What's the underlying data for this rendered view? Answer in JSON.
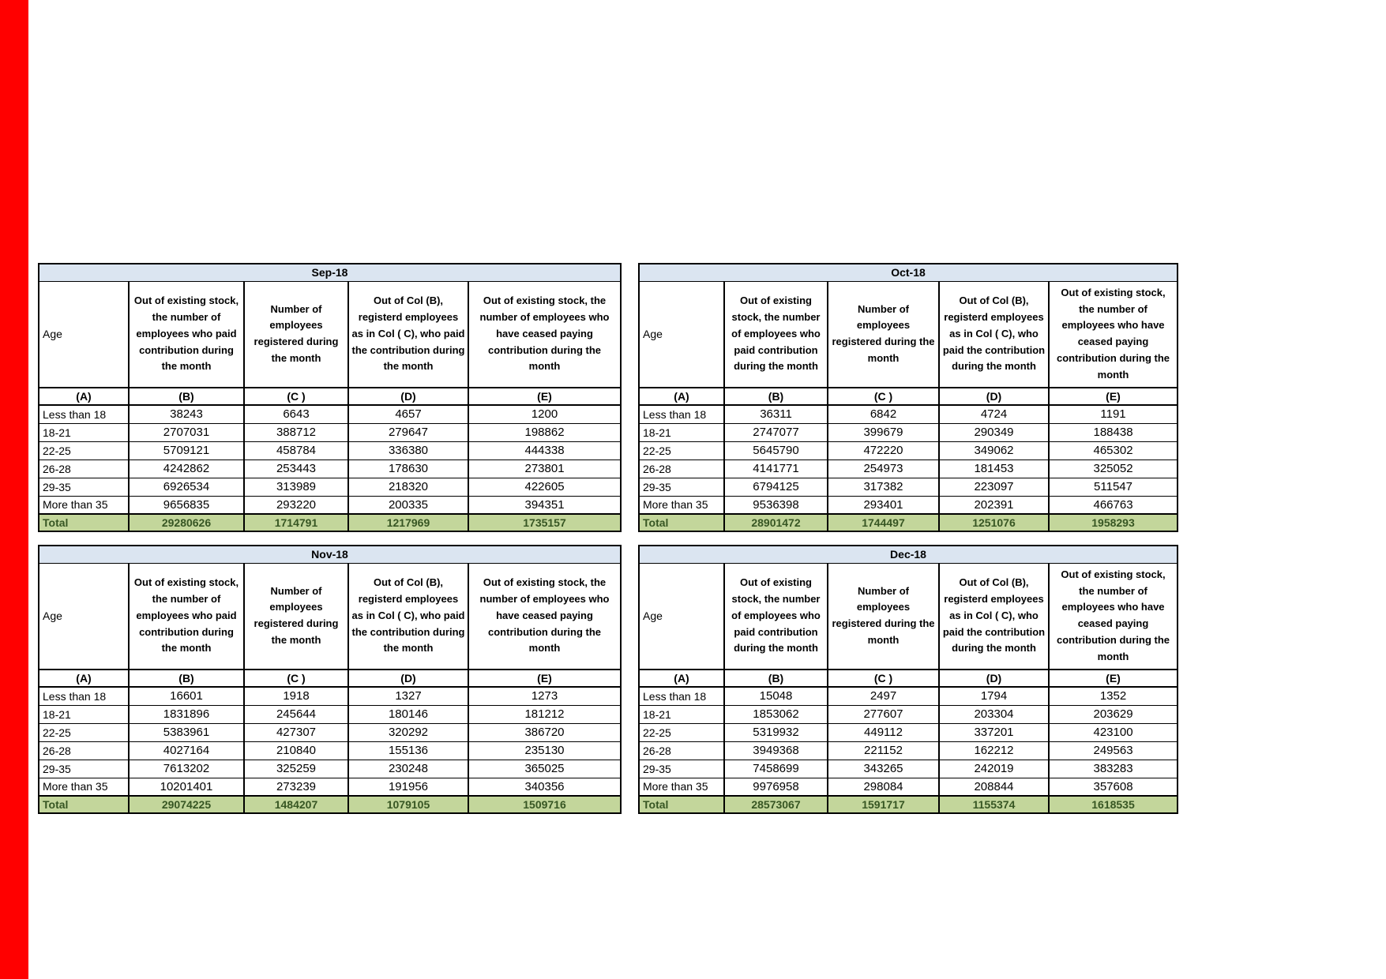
{
  "colors": {
    "left_strip": "#ff0000",
    "month_title_bg": "#dbe5f1",
    "total_row_bg": "#c3d69b",
    "total_row_text": "#375623",
    "border": "#000000"
  },
  "columns": {
    "age_label": "Age",
    "col_b_header": "Out of existing stock, the number of employees who paid contribution during the month",
    "col_c_header": "Number of employees registered during the month",
    "col_d_header": "Out of Col (B), registerd employees as in Col ( C), who paid the contribution during the month",
    "col_e_header": "Out of existing stock, the number of employees  who have ceased paying contribution during the month",
    "letters": [
      "(A)",
      "(B)",
      "(C )",
      "(D)",
      "(E)"
    ]
  },
  "tables": [
    {
      "month": "Sep-18",
      "rows": [
        [
          "Less than 18",
          "38243",
          "6643",
          "4657",
          "1200"
        ],
        [
          "18-21",
          "2707031",
          "388712",
          "279647",
          "198862"
        ],
        [
          "22-25",
          "5709121",
          "458784",
          "336380",
          "444338"
        ],
        [
          "26-28",
          "4242862",
          "253443",
          "178630",
          "273801"
        ],
        [
          "29-35",
          "6926534",
          "313989",
          "218320",
          "422605"
        ],
        [
          "More than 35",
          "9656835",
          "293220",
          "200335",
          "394351"
        ]
      ],
      "total": [
        "Total",
        "29280626",
        "1714791",
        "1217969",
        "1735157"
      ]
    },
    {
      "month": "Oct-18",
      "rows": [
        [
          "Less than 18",
          "36311",
          "6842",
          "4724",
          "1191"
        ],
        [
          "18-21",
          "2747077",
          "399679",
          "290349",
          "188438"
        ],
        [
          "22-25",
          "5645790",
          "472220",
          "349062",
          "465302"
        ],
        [
          "26-28",
          "4141771",
          "254973",
          "181453",
          "325052"
        ],
        [
          "29-35",
          "6794125",
          "317382",
          "223097",
          "511547"
        ],
        [
          "More than 35",
          "9536398",
          "293401",
          "202391",
          "466763"
        ]
      ],
      "total": [
        "Total",
        "28901472",
        "1744497",
        "1251076",
        "1958293"
      ]
    },
    {
      "month": "Nov-18",
      "rows": [
        [
          "Less than 18",
          "16601",
          "1918",
          "1327",
          "1273"
        ],
        [
          "18-21",
          "1831896",
          "245644",
          "180146",
          "181212"
        ],
        [
          "22-25",
          "5383961",
          "427307",
          "320292",
          "386720"
        ],
        [
          "26-28",
          "4027164",
          "210840",
          "155136",
          "235130"
        ],
        [
          "29-35",
          "7613202",
          "325259",
          "230248",
          "365025"
        ],
        [
          "More than 35",
          "10201401",
          "273239",
          "191956",
          "340356"
        ]
      ],
      "total": [
        "Total",
        "29074225",
        "1484207",
        "1079105",
        "1509716"
      ]
    },
    {
      "month": "Dec-18",
      "rows": [
        [
          "Less than 18",
          "15048",
          "2497",
          "1794",
          "1352"
        ],
        [
          "18-21",
          "1853062",
          "277607",
          "203304",
          "203629"
        ],
        [
          "22-25",
          "5319932",
          "449112",
          "337201",
          "423100"
        ],
        [
          "26-28",
          "3949368",
          "221152",
          "162212",
          "249563"
        ],
        [
          "29-35",
          "7458699",
          "343265",
          "242019",
          "383283"
        ],
        [
          "More than 35",
          "9976958",
          "298084",
          "208844",
          "357608"
        ]
      ],
      "total": [
        "Total",
        "28573067",
        "1591717",
        "1155374",
        "1618535"
      ]
    }
  ]
}
